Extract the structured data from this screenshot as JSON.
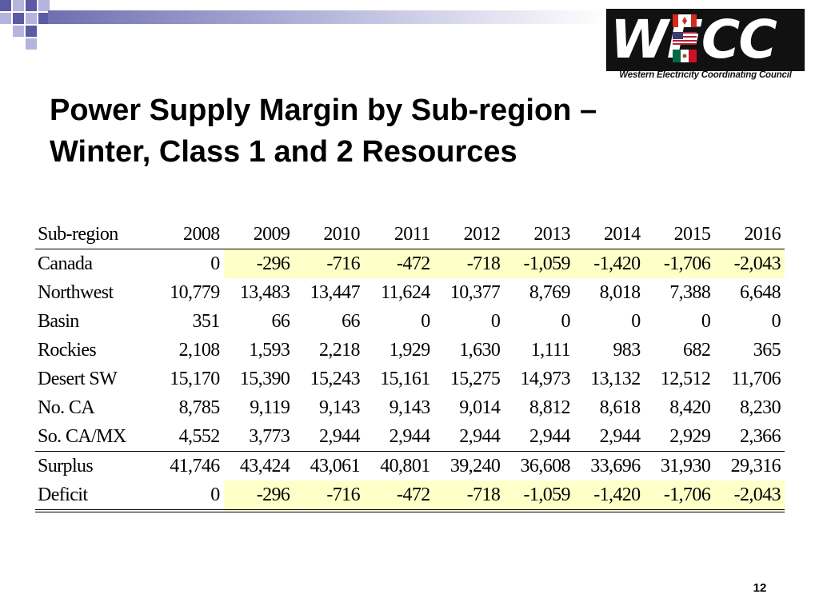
{
  "slide": {
    "title_line1": "Power Supply Margin by Sub-region –",
    "title_line2": "Winter, Class 1 and 2 Resources",
    "page_number": "12"
  },
  "logo": {
    "letters": "WECC",
    "subtitle": "Western Electricity Coordinating Council"
  },
  "colors": {
    "highlight": "#ffffc8",
    "corner_dark": "#5a5aa5",
    "corner_light": "#b4b4dc"
  },
  "table": {
    "headers": [
      "Sub-region",
      "2008",
      "2009",
      "2010",
      "2011",
      "2012",
      "2013",
      "2014",
      "2015",
      "2016"
    ],
    "rows": [
      [
        "Canada",
        "0",
        "-296",
        "-716",
        "-472",
        "-718",
        "-1,059",
        "-1,420",
        "-1,706",
        "-2,043"
      ],
      [
        "Northwest",
        "10,779",
        "13,483",
        "13,447",
        "11,624",
        "10,377",
        "8,769",
        "8,018",
        "7,388",
        "6,648"
      ],
      [
        "Basin",
        "351",
        "66",
        "66",
        "0",
        "0",
        "0",
        "0",
        "0",
        "0"
      ],
      [
        "Rockies",
        "2,108",
        "1,593",
        "2,218",
        "1,929",
        "1,630",
        "1,111",
        "983",
        "682",
        "365"
      ],
      [
        "Desert SW",
        "15,170",
        "15,390",
        "15,243",
        "15,161",
        "15,275",
        "14,973",
        "13,132",
        "12,512",
        "11,706"
      ],
      [
        "No. CA",
        "8,785",
        "9,119",
        "9,143",
        "9,143",
        "9,014",
        "8,812",
        "8,618",
        "8,420",
        "8,230"
      ],
      [
        "So. CA/MX",
        "4,552",
        "3,773",
        "2,944",
        "2,944",
        "2,944",
        "2,944",
        "2,944",
        "2,929",
        "2,366"
      ],
      [
        "Surplus",
        "41,746",
        "43,424",
        "43,061",
        "40,801",
        "39,240",
        "36,608",
        "33,696",
        "31,930",
        "29,316"
      ],
      [
        "Deficit",
        "0",
        "-296",
        "-716",
        "-472",
        "-718",
        "-1,059",
        "-1,420",
        "-1,706",
        "-2,043"
      ]
    ]
  }
}
